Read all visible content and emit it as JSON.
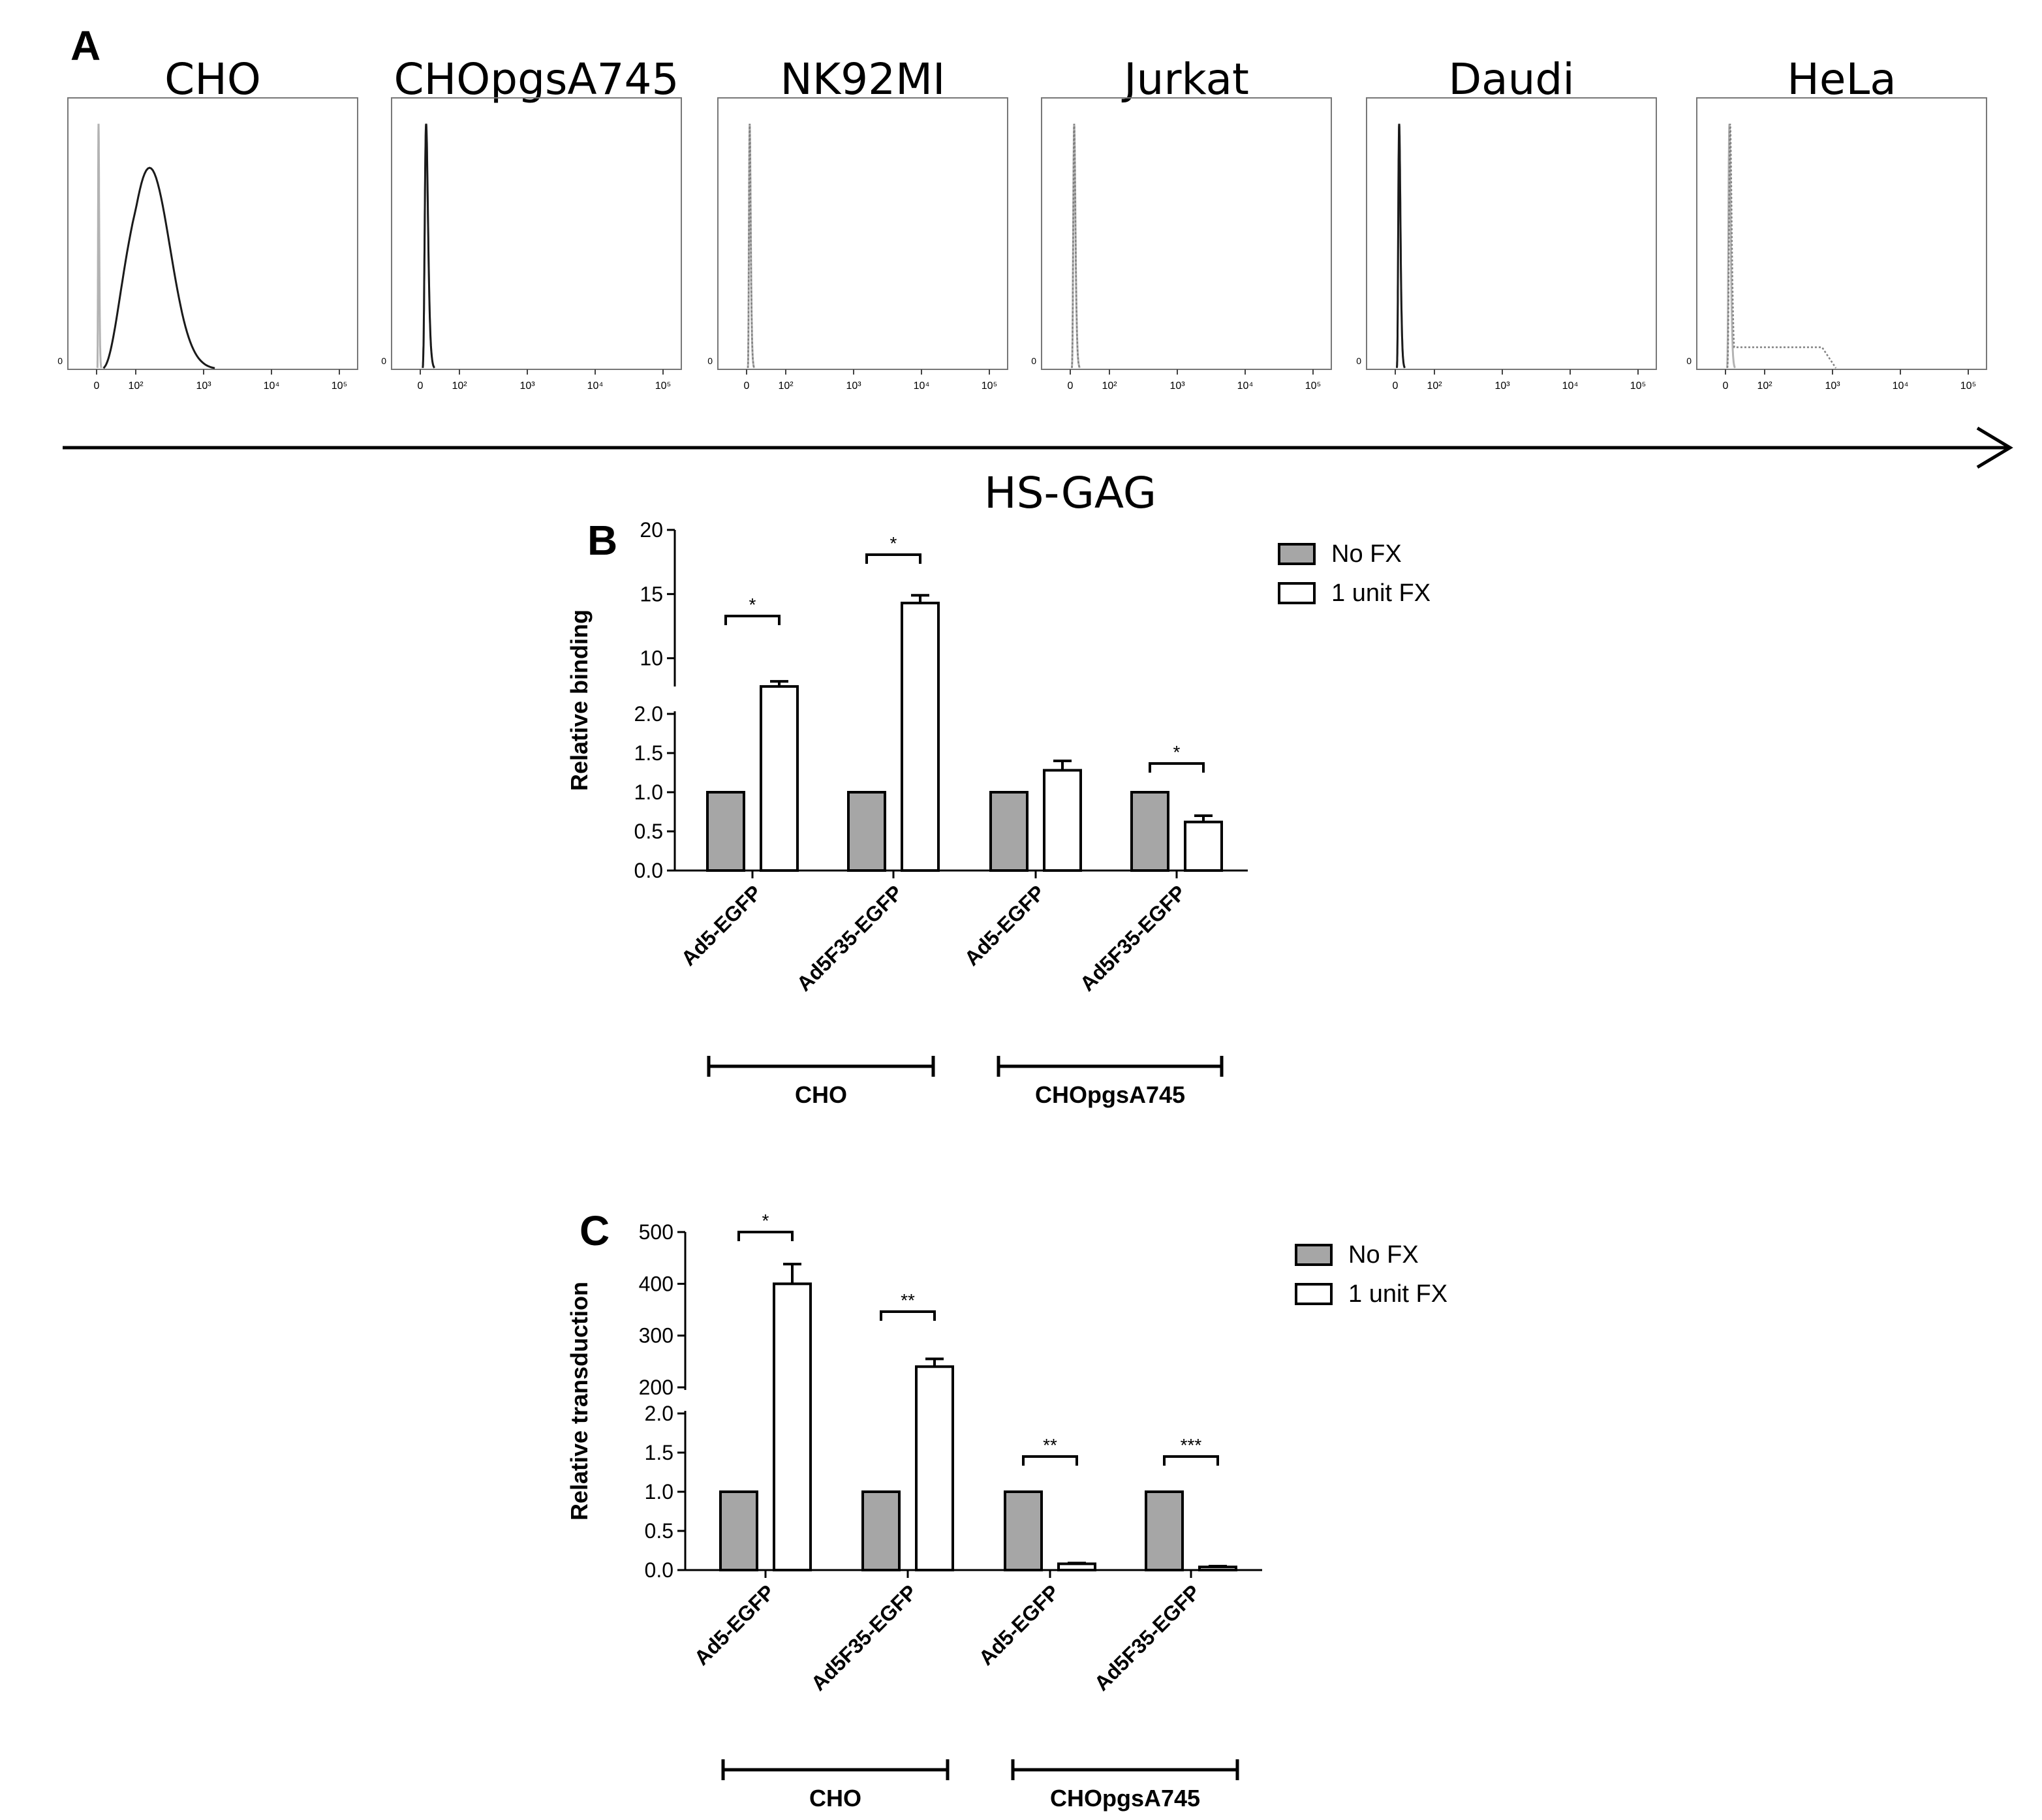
{
  "figure": {
    "panel_a": {
      "letter": "A",
      "axis_label": "HS-GAG",
      "y_zero_label": "0",
      "x_tick_labels": [
        "0",
        "10²",
        "10³",
        "10⁴",
        "10⁵"
      ]
    },
    "panel_b": {
      "letter": "B"
    },
    "panel_c": {
      "letter": "C"
    }
  },
  "chart_data": [
    {
      "type": "histogram",
      "panel": "A",
      "x_scale": "biexponential",
      "x_ticks": [
        "0",
        "10²",
        "10³",
        "10⁴",
        "10⁵"
      ],
      "colors": {
        "control": "#b3b3b3",
        "stained": "#1a1a1a",
        "stained_dotted": "#808080"
      },
      "cells": [
        {
          "title": "CHO",
          "control_peak": 5,
          "stained_peak": 160,
          "stained_style": "solid"
        },
        {
          "title": "CHOpgsA745",
          "control_peak": 15,
          "stained_peak": 15,
          "stained_style": "solid"
        },
        {
          "title": "NK92MI",
          "control_peak": 8,
          "stained_peak": 8,
          "stained_style": "dotted"
        },
        {
          "title": "Jurkat",
          "control_peak": 10,
          "stained_peak": 10,
          "stained_style": "dotted"
        },
        {
          "title": "Daudi",
          "control_peak": 10,
          "stained_peak": 10,
          "stained_style": "solid"
        },
        {
          "title": "HeLa",
          "control_peak": 10,
          "stained_peak": 12,
          "stained_style": "dotted",
          "stained_tail_to": 700
        }
      ]
    },
    {
      "type": "bar",
      "panel": "B",
      "ylabel": "Relative binding",
      "axis_break": true,
      "lower_ylim": [
        0,
        2
      ],
      "lower_yticks": [
        "0.0",
        "0.5",
        "1.0",
        "1.5",
        "2.0"
      ],
      "upper_ylim": [
        8,
        20
      ],
      "upper_yticks": [
        "10",
        "15",
        "20"
      ],
      "categories": [
        "Ad5-EGFP",
        "Ad5F35-EGFP",
        "Ad5-EGFP",
        "Ad5F35-EGFP"
      ],
      "groups": [
        {
          "label": "CHO",
          "categories": [
            0,
            1
          ]
        },
        {
          "label": "CHOpgsA745",
          "categories": [
            2,
            3
          ]
        }
      ],
      "series": [
        {
          "name": "No FX",
          "color": "#a6a6a6",
          "values": [
            1.0,
            1.0,
            1.0,
            1.0
          ],
          "errors": [
            0,
            0,
            0,
            0
          ]
        },
        {
          "name": "1 unit FX",
          "color": "#ffffff",
          "values": [
            7.8,
            14.3,
            1.28,
            0.62
          ],
          "errors": [
            0.4,
            0.6,
            0.12,
            0.08
          ]
        }
      ],
      "significance": [
        "*",
        "*",
        "",
        "*"
      ],
      "legend": "top-right"
    },
    {
      "type": "bar",
      "panel": "C",
      "ylabel": "Relative transduction",
      "axis_break": true,
      "lower_ylim": [
        0,
        2
      ],
      "lower_yticks": [
        "0.0",
        "0.5",
        "1.0",
        "1.5",
        "2.0"
      ],
      "upper_ylim": [
        200,
        500
      ],
      "upper_yticks": [
        "200",
        "300",
        "400",
        "500"
      ],
      "categories": [
        "Ad5-EGFP",
        "Ad5F35-EGFP",
        "Ad5-EGFP",
        "Ad5F35-EGFP"
      ],
      "groups": [
        {
          "label": "CHO",
          "categories": [
            0,
            1
          ]
        },
        {
          "label": "CHOpgsA745",
          "categories": [
            2,
            3
          ]
        }
      ],
      "series": [
        {
          "name": "No FX",
          "color": "#a6a6a6",
          "values": [
            1.0,
            1.0,
            1.0,
            1.0
          ],
          "errors": [
            0,
            0,
            0,
            0
          ]
        },
        {
          "name": "1 unit FX",
          "color": "#ffffff",
          "values": [
            400,
            240,
            0.08,
            0.04
          ],
          "errors": [
            38,
            15,
            0.01,
            0.01
          ]
        }
      ],
      "significance": [
        "*",
        "**",
        "**",
        "***"
      ],
      "legend": "top-right"
    }
  ]
}
